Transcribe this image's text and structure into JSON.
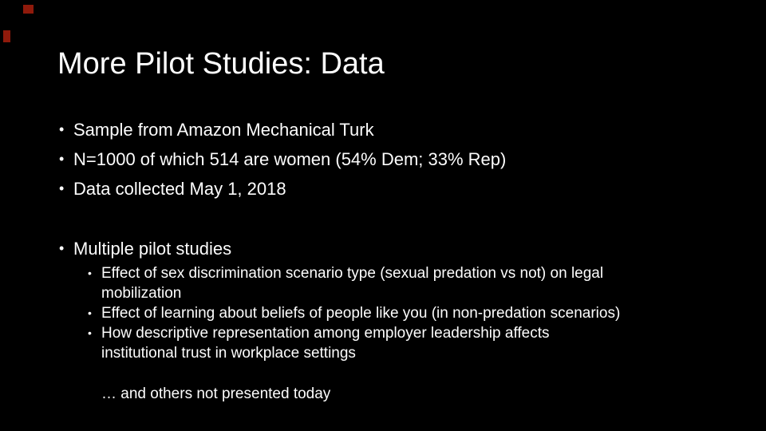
{
  "slide": {
    "title": "More Pilot Studies: Data",
    "bullet_char": "•",
    "colors": {
      "background": "#000000",
      "text": "#fdfdfd",
      "artifact_red": "#8f1a0b"
    },
    "main_bullets": [
      "Sample from Amazon Mechanical Turk",
      "N=1000 of which 514 are women (54% Dem; 33% Rep)",
      "Data collected May 1, 2018"
    ],
    "second_section": {
      "heading": "Multiple pilot studies",
      "sub_bullets": [
        {
          "lines": [
            "Effect of sex discrimination scenario type (sexual predation vs not) on legal",
            "mobilization"
          ]
        },
        {
          "lines": [
            "Effect of learning about beliefs of people like you (in non-predation scenarios)"
          ]
        },
        {
          "lines": [
            "How descriptive representation among employer leadership affects",
            "institutional trust in workplace settings"
          ]
        }
      ],
      "footnote": "… and others not presented today"
    }
  }
}
